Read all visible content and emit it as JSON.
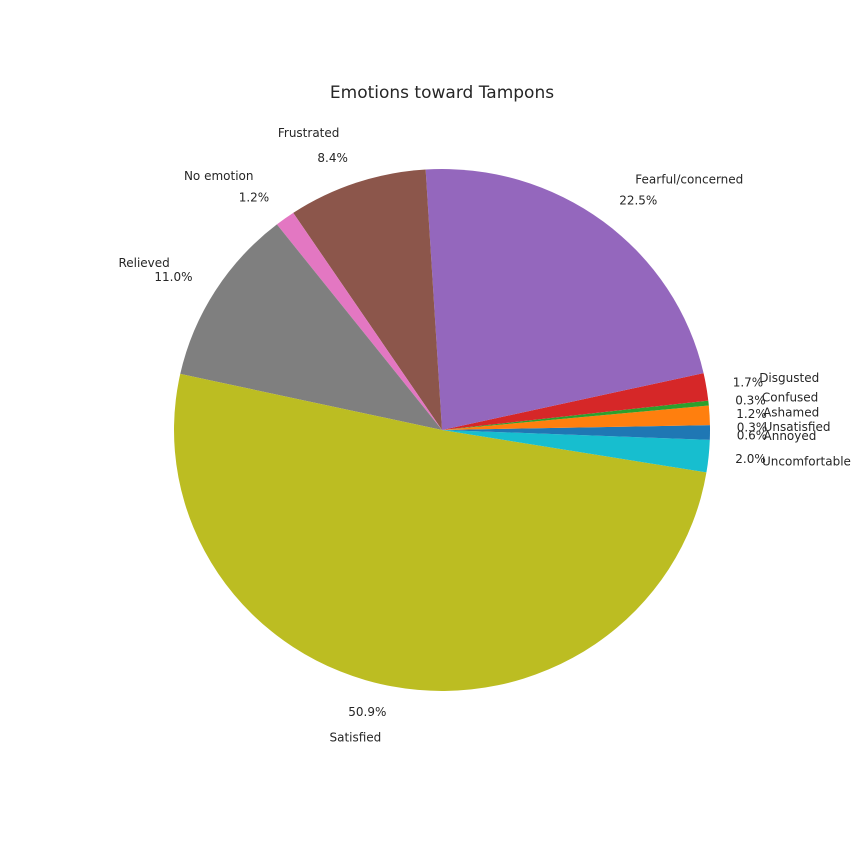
{
  "chart_data": {
    "type": "pie",
    "title": "Emotions toward Tampons",
    "start_angle_deg": 0,
    "direction": "counterclockwise",
    "slices": [
      {
        "label": "Unsatisfied",
        "value": 0.3,
        "pct_label": "0.3%",
        "color": "#1f77b4"
      },
      {
        "label": "Ashamed",
        "value": 1.2,
        "pct_label": "1.2%",
        "color": "#ff7f0e"
      },
      {
        "label": "Confused",
        "value": 0.3,
        "pct_label": "0.3%",
        "color": "#2ca02c"
      },
      {
        "label": "Disgusted",
        "value": 1.7,
        "pct_label": "1.7%",
        "color": "#d62728"
      },
      {
        "label": "Fearful/concerned",
        "value": 22.5,
        "pct_label": "22.5%",
        "color": "#9467bd"
      },
      {
        "label": "Frustrated",
        "value": 8.4,
        "pct_label": "8.4%",
        "color": "#8c564b"
      },
      {
        "label": "No emotion",
        "value": 1.2,
        "pct_label": "1.2%",
        "color": "#e377c2"
      },
      {
        "label": "Relieved",
        "value": 11.0,
        "pct_label": "11.0%",
        "color": "#7f7f7f"
      },
      {
        "label": "Satisfied",
        "value": 50.9,
        "pct_label": "50.9%",
        "color": "#bcbd22"
      },
      {
        "label": "Uncomfortable",
        "value": 2.0,
        "pct_label": "2.0%",
        "color": "#17becf"
      },
      {
        "label": "Annoyed",
        "value": 0.6,
        "pct_label": "0.6%",
        "color": "#1f77b4"
      }
    ]
  }
}
